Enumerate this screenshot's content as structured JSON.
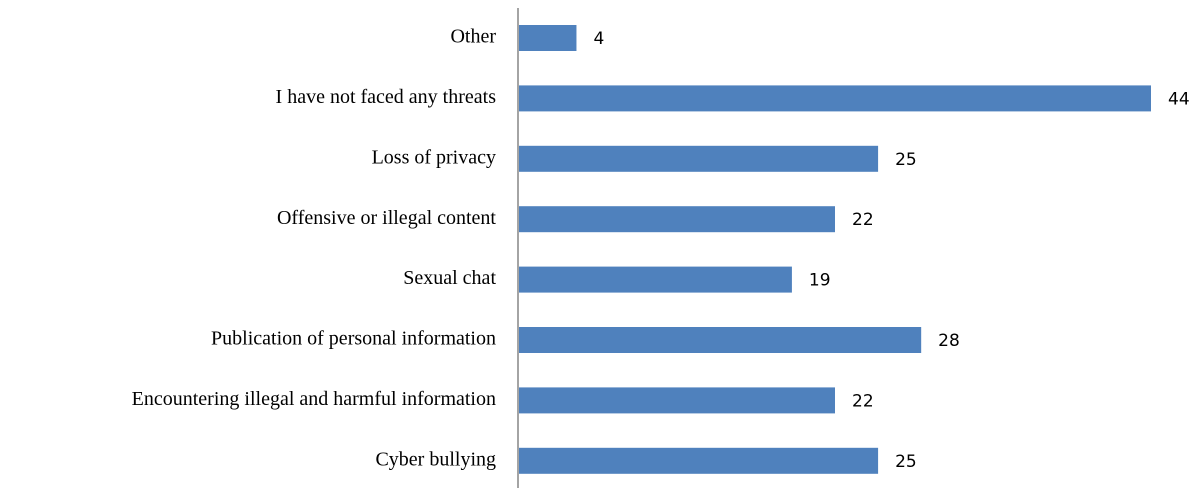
{
  "chart_data": {
    "type": "bar",
    "orientation": "horizontal",
    "categories": [
      "Other",
      "I have not faced any threats",
      "Loss of privacy",
      "Offensive or illegal content",
      "Sexual chat",
      "Publication of personal information",
      "Encountering illegal and harmful information",
      "Cyber bullying"
    ],
    "values": [
      4,
      44,
      25,
      22,
      19,
      28,
      22,
      25
    ],
    "data_labels": [
      "4",
      "44",
      "25",
      "22",
      "19",
      "28",
      "22",
      "25"
    ],
    "xlim": [
      0,
      44
    ],
    "grid": false,
    "legend": "none",
    "bar_color": "#4f81bd",
    "axis_color": "#868686"
  }
}
